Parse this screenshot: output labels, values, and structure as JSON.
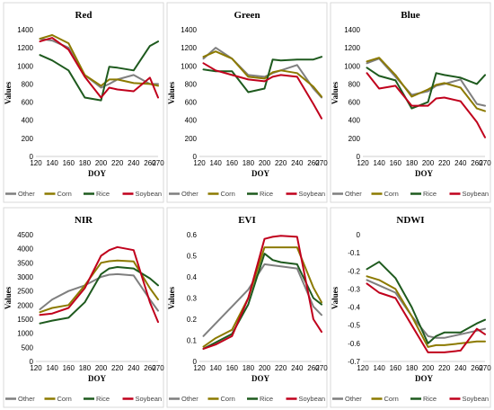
{
  "legend": {
    "items": [
      {
        "name": "Other",
        "color": "#7f7f7f"
      },
      {
        "name": "Corn",
        "color": "#8c7a00"
      },
      {
        "name": "Rice",
        "color": "#1e5a1e"
      },
      {
        "name": "Soybean",
        "color": "#c0001c"
      }
    ]
  },
  "chart_data": [
    {
      "type": "line",
      "title": "Red",
      "xlabel": "DOY",
      "ylabel": "Values",
      "x_ticks": [
        "120",
        "140",
        "160",
        "180",
        "200",
        "220",
        "240",
        "260",
        "270"
      ],
      "y_ticks": [
        "0",
        "200",
        "400",
        "600",
        "800",
        "1000",
        "1200",
        "1400"
      ],
      "xlim": [
        120,
        270
      ],
      "ylim": [
        0,
        1400
      ],
      "x": [
        125,
        140,
        160,
        180,
        200,
        210,
        220,
        240,
        260,
        270
      ],
      "series": [
        {
          "name": "Other",
          "color": "#7f7f7f",
          "values": [
            1300,
            1280,
            1200,
            900,
            760,
            800,
            850,
            900,
            800,
            800
          ]
        },
        {
          "name": "Corn",
          "color": "#8c7a00",
          "values": [
            1300,
            1340,
            1250,
            900,
            780,
            850,
            850,
            810,
            800,
            780
          ]
        },
        {
          "name": "Rice",
          "color": "#1e5a1e",
          "values": [
            1120,
            1060,
            950,
            650,
            620,
            990,
            980,
            950,
            1220,
            1270
          ]
        },
        {
          "name": "Soybean",
          "color": "#c0001c",
          "values": [
            1270,
            1310,
            1180,
            880,
            650,
            760,
            740,
            720,
            870,
            650
          ]
        }
      ]
    },
    {
      "type": "line",
      "title": "Green",
      "xlabel": "DOY",
      "ylabel": "Values",
      "x_ticks": [
        "120",
        "140",
        "160",
        "180",
        "200",
        "220",
        "240",
        "260",
        "270"
      ],
      "y_ticks": [
        "0",
        "200",
        "400",
        "600",
        "800",
        "1000",
        "1200",
        "1400"
      ],
      "xlim": [
        120,
        270
      ],
      "ylim": [
        0,
        1400
      ],
      "x": [
        125,
        140,
        160,
        180,
        200,
        210,
        220,
        240,
        260,
        270
      ],
      "series": [
        {
          "name": "Other",
          "color": "#7f7f7f",
          "values": [
            1080,
            1200,
            1080,
            900,
            880,
            920,
            950,
            1010,
            750,
            650
          ]
        },
        {
          "name": "Corn",
          "color": "#8c7a00",
          "values": [
            1100,
            1160,
            1080,
            880,
            860,
            930,
            950,
            920,
            770,
            660
          ]
        },
        {
          "name": "Rice",
          "color": "#1e5a1e",
          "values": [
            960,
            940,
            940,
            710,
            750,
            1070,
            1060,
            1070,
            1070,
            1100
          ]
        },
        {
          "name": "Soybean",
          "color": "#c0001c",
          "values": [
            1030,
            950,
            900,
            850,
            830,
            880,
            900,
            880,
            580,
            420
          ]
        }
      ]
    },
    {
      "type": "line",
      "title": "Blue",
      "xlabel": "DOY",
      "ylabel": "Values",
      "x_ticks": [
        "120",
        "140",
        "160",
        "180",
        "200",
        "220",
        "240",
        "260",
        "270"
      ],
      "y_ticks": [
        "0",
        "200",
        "400",
        "600",
        "800",
        "1000",
        "1200",
        "1400"
      ],
      "xlim": [
        120,
        270
      ],
      "ylim": [
        0,
        1400
      ],
      "x": [
        125,
        140,
        160,
        180,
        200,
        210,
        220,
        240,
        260,
        270
      ],
      "series": [
        {
          "name": "Other",
          "color": "#7f7f7f",
          "values": [
            1030,
            1080,
            880,
            680,
            720,
            780,
            800,
            850,
            580,
            560
          ]
        },
        {
          "name": "Corn",
          "color": "#8c7a00",
          "values": [
            1050,
            1090,
            900,
            660,
            740,
            790,
            810,
            760,
            530,
            500
          ]
        },
        {
          "name": "Rice",
          "color": "#1e5a1e",
          "values": [
            980,
            890,
            840,
            530,
            600,
            920,
            900,
            870,
            800,
            900
          ]
        },
        {
          "name": "Soybean",
          "color": "#c0001c",
          "values": [
            920,
            750,
            780,
            560,
            560,
            640,
            650,
            610,
            380,
            210
          ]
        }
      ]
    },
    {
      "type": "line",
      "title": "NIR",
      "xlabel": "DOY",
      "ylabel": "Values",
      "x_ticks": [
        "120",
        "140",
        "160",
        "180",
        "200",
        "220",
        "240",
        "260",
        "270"
      ],
      "y_ticks": [
        "0",
        "500",
        "1000",
        "1500",
        "2000",
        "2500",
        "3000",
        "3500",
        "4000",
        "4500"
      ],
      "xlim": [
        120,
        270
      ],
      "ylim": [
        0,
        4500
      ],
      "x": [
        125,
        140,
        160,
        180,
        200,
        210,
        220,
        240,
        260,
        270
      ],
      "series": [
        {
          "name": "Other",
          "color": "#7f7f7f",
          "values": [
            1850,
            2200,
            2500,
            2700,
            3000,
            3080,
            3100,
            3050,
            2200,
            1800
          ]
        },
        {
          "name": "Corn",
          "color": "#8c7a00",
          "values": [
            1750,
            1900,
            2000,
            2700,
            3500,
            3560,
            3580,
            3550,
            2600,
            2200
          ]
        },
        {
          "name": "Rice",
          "color": "#1e5a1e",
          "values": [
            1350,
            1450,
            1550,
            2100,
            3100,
            3300,
            3350,
            3300,
            2950,
            2700
          ]
        },
        {
          "name": "Soybean",
          "color": "#c0001c",
          "values": [
            1650,
            1700,
            1900,
            2600,
            3750,
            3950,
            4060,
            3950,
            2100,
            1400
          ]
        }
      ]
    },
    {
      "type": "line",
      "title": "EVI",
      "xlabel": "DOY",
      "ylabel": "Values",
      "x_ticks": [
        "120",
        "140",
        "160",
        "180",
        "200",
        "220",
        "240",
        "260",
        "270"
      ],
      "y_ticks": [
        "0",
        "0.1",
        "0.2",
        "0.3",
        "0.4",
        "0.5",
        "0.6"
      ],
      "xlim": [
        120,
        270
      ],
      "ylim": [
        0,
        0.6
      ],
      "x": [
        125,
        140,
        160,
        180,
        200,
        210,
        220,
        240,
        260,
        270
      ],
      "series": [
        {
          "name": "Other",
          "color": "#7f7f7f",
          "values": [
            0.12,
            0.18,
            0.26,
            0.34,
            0.46,
            0.455,
            0.45,
            0.44,
            0.26,
            0.22
          ]
        },
        {
          "name": "Corn",
          "color": "#8c7a00",
          "values": [
            0.07,
            0.11,
            0.15,
            0.3,
            0.54,
            0.54,
            0.54,
            0.54,
            0.35,
            0.28
          ]
        },
        {
          "name": "Rice",
          "color": "#1e5a1e",
          "values": [
            0.06,
            0.09,
            0.13,
            0.27,
            0.51,
            0.48,
            0.47,
            0.46,
            0.3,
            0.27
          ]
        },
        {
          "name": "Soybean",
          "color": "#c0001c",
          "values": [
            0.06,
            0.08,
            0.12,
            0.3,
            0.58,
            0.59,
            0.595,
            0.59,
            0.2,
            0.14
          ]
        }
      ]
    },
    {
      "type": "line",
      "title": "NDWI",
      "xlabel": "DOY",
      "ylabel": "Values",
      "x_ticks": [
        "120",
        "140",
        "160",
        "180",
        "200",
        "220",
        "240",
        "260",
        "270"
      ],
      "y_ticks": [
        "-0.7",
        "-0.6",
        "-0.5",
        "-0.4",
        "-0.3",
        "-0.2",
        "-0.1",
        "0"
      ],
      "xlim": [
        120,
        270
      ],
      "ylim": [
        -0.7,
        0
      ],
      "x": [
        125,
        140,
        160,
        180,
        200,
        210,
        220,
        240,
        260,
        270
      ],
      "series": [
        {
          "name": "Other",
          "color": "#7f7f7f",
          "values": [
            -0.25,
            -0.28,
            -0.32,
            -0.45,
            -0.56,
            -0.57,
            -0.57,
            -0.55,
            -0.53,
            -0.52
          ]
        },
        {
          "name": "Corn",
          "color": "#8c7a00",
          "values": [
            -0.23,
            -0.25,
            -0.3,
            -0.45,
            -0.62,
            -0.61,
            -0.61,
            -0.6,
            -0.59,
            -0.59
          ]
        },
        {
          "name": "Rice",
          "color": "#1e5a1e",
          "values": [
            -0.19,
            -0.15,
            -0.24,
            -0.4,
            -0.6,
            -0.56,
            -0.54,
            -0.54,
            -0.49,
            -0.47
          ]
        },
        {
          "name": "Soybean",
          "color": "#c0001c",
          "values": [
            -0.27,
            -0.32,
            -0.35,
            -0.5,
            -0.65,
            -0.65,
            -0.65,
            -0.64,
            -0.52,
            -0.55
          ]
        }
      ]
    }
  ]
}
